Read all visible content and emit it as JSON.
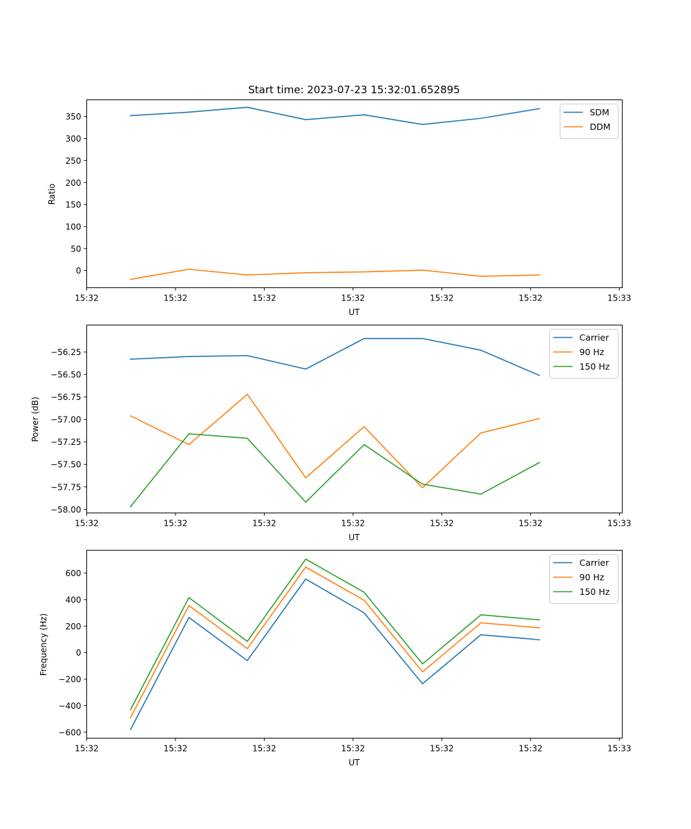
{
  "figure_title": "Start time: 2023-07-23 15:32:01.652895",
  "chart_data": [
    {
      "type": "line",
      "title": "Start time: 2023-07-23 15:32:01.652895",
      "xlabel": "UT",
      "ylabel": "Ratio",
      "x": [
        0,
        1,
        2,
        3,
        4,
        5,
        6,
        7
      ],
      "xlim": [
        -0.75,
        8.42
      ],
      "xtick_positions": [
        -0.75,
        0.77,
        2.29,
        3.81,
        5.33,
        6.85,
        8.37
      ],
      "xtick_labels": [
        "15:32",
        "15:32",
        "15:32",
        "15:32",
        "15:32",
        "15:32",
        "15:33"
      ],
      "ylim": [
        -39,
        388
      ],
      "yticks": [
        0,
        50,
        100,
        150,
        200,
        250,
        300,
        350
      ],
      "ytick_labels": [
        "0",
        "50",
        "100",
        "150",
        "200",
        "250",
        "300",
        "350"
      ],
      "grid": false,
      "legend_position": "upper-right",
      "series": [
        {
          "name": "SDM",
          "color": "#1f77b4",
          "values": [
            352,
            360,
            371,
            343,
            354,
            332,
            346,
            368
          ]
        },
        {
          "name": "DDM",
          "color": "#ff7f0e",
          "values": [
            -20,
            3,
            -10,
            -5,
            -3,
            1,
            -13,
            -10
          ]
        }
      ]
    },
    {
      "type": "line",
      "xlabel": "UT",
      "ylabel": "Power (dB)",
      "x": [
        0,
        1,
        2,
        3,
        4,
        5,
        6,
        7
      ],
      "xlim": [
        -0.75,
        8.42
      ],
      "xtick_positions": [
        -0.75,
        0.77,
        2.29,
        3.81,
        5.33,
        6.85,
        8.37
      ],
      "xtick_labels": [
        "15:32",
        "15:32",
        "15:32",
        "15:32",
        "15:32",
        "15:32",
        "15:33"
      ],
      "ylim": [
        -58.04,
        -55.95
      ],
      "yticks": [
        -58.0,
        -57.75,
        -57.5,
        -57.25,
        -57.0,
        -56.75,
        -56.5,
        -56.25
      ],
      "ytick_labels": [
        "−58.00",
        "−57.75",
        "−57.50",
        "−57.25",
        "−57.00",
        "−56.75",
        "−56.50",
        "−56.25"
      ],
      "grid": false,
      "legend_position": "upper-right",
      "series": [
        {
          "name": "Carrier",
          "color": "#1f77b4",
          "values": [
            -56.33,
            -56.3,
            -56.29,
            -56.44,
            -56.1,
            -56.1,
            -56.23,
            -56.51
          ]
        },
        {
          "name": "90 Hz",
          "color": "#ff7f0e",
          "values": [
            -56.96,
            -57.28,
            -56.72,
            -57.65,
            -57.08,
            -57.76,
            -57.15,
            -56.99
          ]
        },
        {
          "name": "150 Hz",
          "color": "#2ca02c",
          "values": [
            -57.97,
            -57.16,
            -57.21,
            -57.92,
            -57.28,
            -57.72,
            -57.83,
            -57.48
          ]
        }
      ]
    },
    {
      "type": "line",
      "xlabel": "UT",
      "ylabel": "Frequency (Hz)",
      "x": [
        0,
        1,
        2,
        3,
        4,
        5,
        6,
        7
      ],
      "xlim": [
        -0.75,
        8.42
      ],
      "xtick_positions": [
        -0.75,
        0.77,
        2.29,
        3.81,
        5.33,
        6.85,
        8.37
      ],
      "xtick_labels": [
        "15:32",
        "15:32",
        "15:32",
        "15:32",
        "15:32",
        "15:32",
        "15:33"
      ],
      "ylim": [
        -645,
        772
      ],
      "yticks": [
        -600,
        -400,
        -200,
        0,
        200,
        400,
        600
      ],
      "ytick_labels": [
        "−600",
        "−400",
        "−200",
        "0",
        "200",
        "400",
        "600"
      ],
      "grid": false,
      "legend_position": "upper-right",
      "series": [
        {
          "name": "Carrier",
          "color": "#1f77b4",
          "values": [
            -580,
            265,
            -60,
            555,
            300,
            -235,
            135,
            97
          ]
        },
        {
          "name": "90 Hz",
          "color": "#ff7f0e",
          "values": [
            -490,
            355,
            30,
            645,
            395,
            -145,
            225,
            187
          ]
        },
        {
          "name": "150 Hz",
          "color": "#2ca02c",
          "values": [
            -430,
            415,
            85,
            705,
            455,
            -85,
            285,
            247
          ]
        }
      ]
    }
  ]
}
